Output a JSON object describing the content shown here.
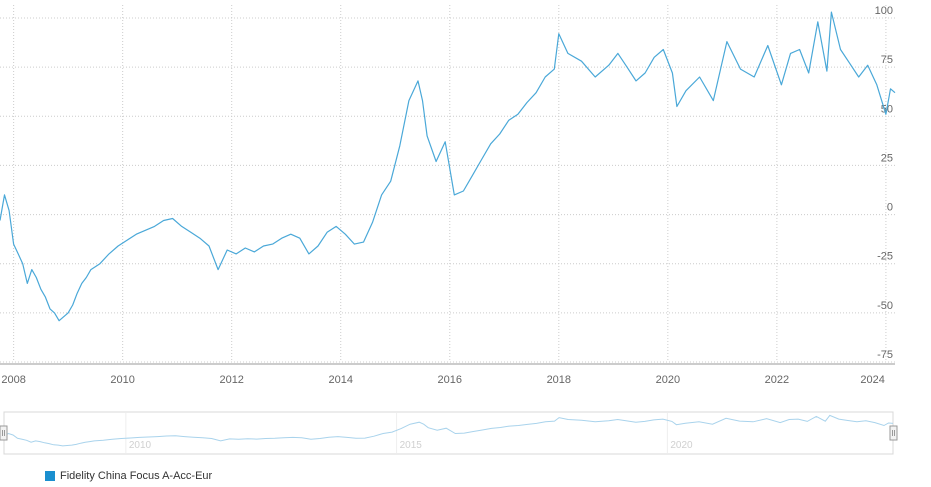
{
  "chart_data": {
    "type": "line",
    "title": "",
    "xlabel": "",
    "ylabel": "",
    "x_ticks": [
      "2008",
      "2010",
      "2012",
      "2014",
      "2016",
      "2018",
      "2020",
      "2022",
      "2024"
    ],
    "y_ticks": [
      "-75",
      "-50",
      "-25",
      "0",
      "25",
      "50",
      "75",
      "100"
    ],
    "ylim": [
      -75,
      100
    ],
    "xlim": [
      "2007-10",
      "2024-03"
    ],
    "grid": true,
    "y_axis_position": "right",
    "legend_position": "bottom-left",
    "navigator_labels": [
      "2010",
      "2015",
      "2020"
    ],
    "series": [
      {
        "name": "Fidelity China Focus A-Acc-Eur",
        "color": "#4aa8d8",
        "x": [
          "2007-10",
          "2007-11",
          "2007-12",
          "2008-01",
          "2008-02",
          "2008-03",
          "2008-04",
          "2008-05",
          "2008-06",
          "2008-07",
          "2008-08",
          "2008-09",
          "2008-10",
          "2008-11",
          "2008-12",
          "2009-01",
          "2009-02",
          "2009-03",
          "2009-04",
          "2009-05",
          "2009-06",
          "2009-08",
          "2009-10",
          "2009-12",
          "2010-02",
          "2010-04",
          "2010-06",
          "2010-08",
          "2010-10",
          "2010-12",
          "2011-02",
          "2011-04",
          "2011-06",
          "2011-08",
          "2011-10",
          "2011-12",
          "2012-02",
          "2012-04",
          "2012-06",
          "2012-08",
          "2012-10",
          "2012-12",
          "2013-02",
          "2013-04",
          "2013-06",
          "2013-08",
          "2013-10",
          "2013-12",
          "2014-02",
          "2014-04",
          "2014-06",
          "2014-08",
          "2014-10",
          "2014-12",
          "2015-02",
          "2015-04",
          "2015-06",
          "2015-07",
          "2015-08",
          "2015-10",
          "2015-12",
          "2016-02",
          "2016-04",
          "2016-06",
          "2016-08",
          "2016-10",
          "2016-12",
          "2017-02",
          "2017-04",
          "2017-06",
          "2017-08",
          "2017-10",
          "2017-12",
          "2018-01",
          "2018-03",
          "2018-06",
          "2018-09",
          "2018-12",
          "2019-02",
          "2019-04",
          "2019-06",
          "2019-08",
          "2019-10",
          "2019-12",
          "2020-02",
          "2020-03",
          "2020-05",
          "2020-08",
          "2020-11",
          "2021-02",
          "2021-05",
          "2021-08",
          "2021-11",
          "2022-02",
          "2022-04",
          "2022-06",
          "2022-08",
          "2022-10",
          "2022-12",
          "2023-01",
          "2023-03",
          "2023-05",
          "2023-07",
          "2023-09",
          "2023-11",
          "2024-01",
          "2024-02",
          "2024-03"
        ],
        "y": [
          -3,
          10,
          2,
          -15,
          -20,
          -25,
          -35,
          -28,
          -32,
          -38,
          -42,
          -48,
          -50,
          -54,
          -52,
          -50,
          -46,
          -40,
          -35,
          -32,
          -28,
          -25,
          -20,
          -16,
          -13,
          -10,
          -8,
          -6,
          -3,
          -2,
          -6,
          -9,
          -12,
          -16,
          -28,
          -18,
          -20,
          -17,
          -19,
          -16,
          -15,
          -12,
          -10,
          -12,
          -20,
          -16,
          -9,
          -6,
          -10,
          -15,
          -14,
          -4,
          10,
          17,
          35,
          58,
          68,
          58,
          40,
          27,
          37,
          10,
          12,
          20,
          28,
          36,
          41,
          48,
          51,
          57,
          62,
          70,
          74,
          92,
          82,
          78,
          70,
          76,
          82,
          75,
          68,
          72,
          80,
          84,
          72,
          55,
          63,
          70,
          58,
          88,
          74,
          70,
          86,
          66,
          82,
          84,
          72,
          98,
          73,
          103,
          84,
          77,
          70,
          76,
          66,
          51,
          64,
          62
        ]
      }
    ]
  }
}
